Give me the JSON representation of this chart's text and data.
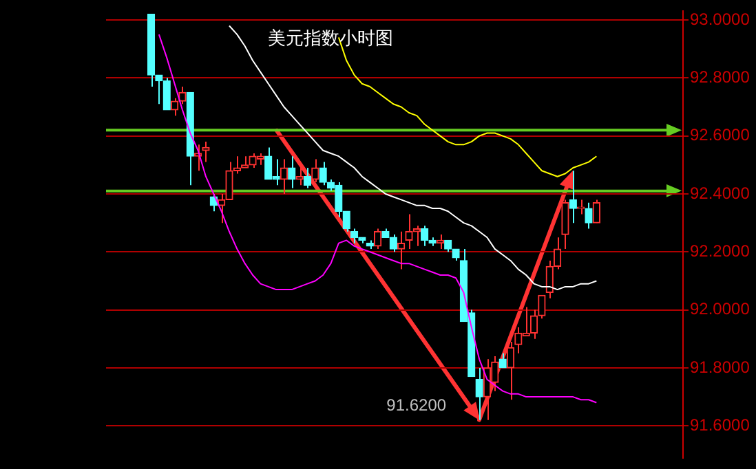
{
  "chart_data": {
    "type": "candlestick",
    "title": "美元指数小时图",
    "categories": [
      null,
      null,
      null,
      null,
      null,
      null,
      null,
      null,
      null,
      null,
      null,
      null,
      null,
      null,
      null,
      null,
      null,
      null,
      null,
      null,
      null,
      null,
      null,
      null,
      null,
      null,
      null,
      null,
      null,
      null,
      null,
      null,
      null,
      null,
      null,
      null,
      null,
      null,
      null,
      null,
      null,
      null,
      null,
      null,
      null,
      null,
      null,
      null,
      null,
      null,
      null,
      null,
      null,
      null,
      null,
      null,
      null,
      null
    ],
    "ohlc": [
      [
        93.02,
        93.02,
        92.77,
        92.81
      ],
      [
        92.81,
        92.81,
        92.71,
        92.79
      ],
      [
        92.79,
        92.8,
        92.69,
        92.69
      ],
      [
        92.69,
        92.73,
        92.67,
        92.72
      ],
      [
        92.72,
        92.77,
        92.71,
        92.75
      ],
      [
        92.75,
        92.75,
        92.43,
        92.53
      ],
      [
        92.53,
        92.57,
        92.48,
        92.54
      ],
      [
        92.55,
        92.58,
        92.51,
        92.56
      ],
      [
        92.39,
        92.4,
        92.34,
        92.36
      ],
      [
        92.36,
        92.4,
        92.3,
        92.38
      ],
      [
        92.38,
        92.51,
        92.38,
        92.48
      ],
      [
        92.48,
        92.53,
        92.47,
        92.49
      ],
      [
        92.49,
        92.53,
        92.49,
        92.5
      ],
      [
        92.5,
        92.54,
        92.49,
        92.53
      ],
      [
        92.52,
        92.54,
        92.5,
        92.53
      ],
      [
        92.53,
        92.56,
        92.45,
        92.45
      ],
      [
        92.46,
        92.52,
        92.43,
        92.45
      ],
      [
        92.45,
        92.52,
        92.4,
        92.49
      ],
      [
        92.49,
        92.53,
        92.42,
        92.45
      ],
      [
        92.45,
        92.49,
        92.43,
        92.46
      ],
      [
        92.46,
        92.49,
        92.42,
        92.43
      ],
      [
        92.45,
        92.52,
        92.44,
        92.49
      ],
      [
        92.49,
        92.51,
        92.43,
        92.44
      ],
      [
        92.44,
        92.45,
        92.41,
        92.42
      ],
      [
        92.43,
        92.44,
        92.32,
        92.34
      ],
      [
        92.34,
        92.34,
        92.27,
        92.28
      ],
      [
        92.27,
        92.28,
        92.23,
        92.25
      ],
      [
        92.25,
        92.25,
        92.23,
        92.24
      ],
      [
        92.23,
        92.24,
        92.21,
        92.22
      ],
      [
        92.22,
        92.28,
        92.21,
        92.27
      ],
      [
        92.27,
        92.28,
        92.25,
        92.25
      ],
      [
        92.25,
        92.26,
        92.2,
        92.21
      ],
      [
        92.21,
        92.27,
        92.14,
        92.23
      ],
      [
        92.24,
        92.33,
        92.21,
        92.27
      ],
      [
        92.27,
        92.29,
        92.22,
        92.28
      ],
      [
        92.28,
        92.29,
        92.22,
        92.24
      ],
      [
        92.24,
        92.25,
        92.22,
        92.23
      ],
      [
        92.23,
        92.26,
        92.21,
        92.24
      ],
      [
        92.24,
        92.24,
        92.2,
        92.21
      ],
      [
        92.21,
        92.21,
        92.17,
        92.18
      ],
      [
        92.17,
        92.21,
        91.96,
        91.96
      ],
      [
        91.99,
        92.0,
        91.77,
        91.77
      ],
      [
        91.76,
        91.8,
        91.62,
        91.7
      ],
      [
        91.7,
        91.83,
        91.62,
        91.8
      ],
      [
        91.75,
        91.84,
        91.72,
        91.82
      ],
      [
        91.83,
        91.85,
        91.8,
        91.8
      ],
      [
        91.8,
        91.89,
        91.69,
        91.87
      ],
      [
        91.88,
        91.94,
        91.85,
        91.92
      ],
      [
        91.91,
        92.01,
        91.91,
        91.92
      ],
      [
        91.92,
        92.0,
        91.9,
        91.98
      ],
      [
        91.98,
        92.05,
        91.97,
        92.05
      ],
      [
        92.06,
        92.17,
        92.04,
        92.15
      ],
      [
        92.15,
        92.25,
        92.14,
        92.21
      ],
      [
        92.26,
        92.38,
        92.21,
        92.37
      ],
      [
        92.38,
        92.48,
        92.3,
        92.35
      ],
      [
        92.35,
        92.38,
        92.33,
        92.35
      ],
      [
        92.35,
        92.37,
        92.28,
        92.3
      ],
      [
        92.3,
        92.38,
        92.3,
        92.37
      ]
    ],
    "series": [
      {
        "type": "line",
        "color": "#ff00ff",
        "values": [
          null,
          92.95,
          92.87,
          92.78,
          92.69,
          92.61,
          92.55,
          92.46,
          92.4,
          92.34,
          92.27,
          92.21,
          92.16,
          92.12,
          92.09,
          92.08,
          92.07,
          92.07,
          92.07,
          92.08,
          92.09,
          92.1,
          92.12,
          92.16,
          92.23,
          92.24,
          92.22,
          92.21,
          92.2,
          92.19,
          92.18,
          92.17,
          92.16,
          92.16,
          92.15,
          92.14,
          92.13,
          92.12,
          92.12,
          92.11,
          92.06,
          91.94,
          91.83,
          91.76,
          91.74,
          91.72,
          91.71,
          91.71,
          91.7,
          91.7,
          91.7,
          91.7,
          91.7,
          91.7,
          91.7,
          91.69,
          91.69,
          91.68
        ]
      },
      {
        "type": "line",
        "color": "#ffff00",
        "values": [
          null,
          null,
          null,
          null,
          null,
          null,
          null,
          null,
          null,
          null,
          null,
          null,
          null,
          null,
          null,
          null,
          null,
          null,
          null,
          null,
          null,
          null,
          null,
          null,
          92.94,
          92.86,
          92.81,
          92.78,
          92.77,
          92.75,
          92.73,
          92.71,
          92.7,
          92.68,
          92.67,
          92.64,
          92.62,
          92.6,
          92.58,
          92.57,
          92.57,
          92.58,
          92.6,
          92.61,
          92.61,
          92.6,
          92.59,
          92.57,
          92.54,
          92.51,
          92.48,
          92.47,
          92.46,
          92.47,
          92.49,
          92.5,
          92.51,
          92.53
        ]
      },
      {
        "type": "line",
        "color": "#ffffff",
        "values": [
          null,
          null,
          null,
          null,
          null,
          null,
          null,
          null,
          null,
          null,
          92.98,
          92.95,
          92.91,
          92.86,
          92.82,
          92.78,
          92.74,
          92.7,
          92.67,
          92.64,
          92.61,
          92.58,
          92.55,
          92.54,
          92.53,
          92.51,
          92.49,
          92.46,
          92.44,
          92.42,
          92.4,
          92.39,
          92.38,
          92.37,
          92.36,
          92.36,
          92.35,
          92.35,
          92.34,
          92.32,
          92.3,
          92.29,
          92.27,
          92.25,
          92.21,
          92.19,
          92.17,
          92.14,
          92.12,
          92.09,
          92.08,
          92.08,
          92.07,
          92.08,
          92.08,
          92.09,
          92.09,
          92.1
        ]
      }
    ],
    "ylim": [
      91.49,
      93.03
    ],
    "yticks": [
      {
        "value": 91.6,
        "label": "91.6000"
      },
      {
        "value": 91.8,
        "label": "91.8000"
      },
      {
        "value": 92,
        "label": "92.0000"
      },
      {
        "value": 92.2,
        "label": "92.2000"
      },
      {
        "value": 92.4,
        "label": "92.4000"
      },
      {
        "value": 92.6,
        "label": "92.6000"
      },
      {
        "value": 92.8,
        "label": "92.8000"
      },
      {
        "value": 93,
        "label": "93.0000"
      }
    ],
    "ref_lines": [
      {
        "axis": "y",
        "value": 92.62,
        "color": "#66cc22"
      },
      {
        "axis": "y",
        "value": 92.41,
        "color": "#66cc22"
      }
    ],
    "annotations": [
      "91.6200"
    ],
    "grid": "y",
    "legend": false,
    "marker": "none",
    "line_style": "solid"
  }
}
